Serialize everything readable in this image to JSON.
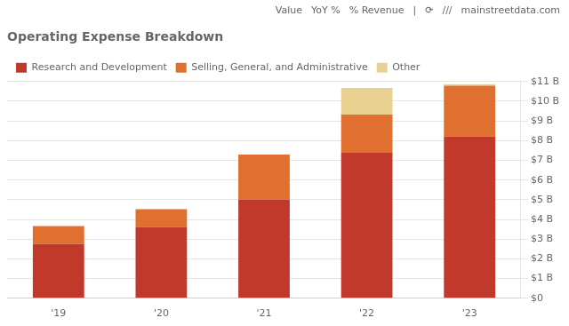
{
  "chart_data": {
    "type": "bar",
    "title": "Operating Expense Breakdown",
    "categories": [
      "'19",
      "'20",
      "'21",
      "'22",
      "'23"
    ],
    "series": [
      {
        "name": "Research and Development",
        "color": "#c0392b",
        "values": [
          2.75,
          3.62,
          5.01,
          7.38,
          8.21
        ]
      },
      {
        "name": "Selling, General, and Administrative",
        "color": "#e07030",
        "values": [
          0.92,
          0.9,
          2.28,
          1.94,
          2.58
        ]
      },
      {
        "name": "Other",
        "color": "#e8d090",
        "values": [
          0.0,
          0.0,
          0.0,
          1.35,
          0.08
        ]
      }
    ],
    "stacked": true,
    "ylim": [
      0,
      11
    ],
    "yticks": [
      {
        "value": 0,
        "label": "$0"
      },
      {
        "value": 1,
        "label": "$1 B"
      },
      {
        "value": 2,
        "label": "$2 B"
      },
      {
        "value": 3,
        "label": "$3 B"
      },
      {
        "value": 4,
        "label": "$4 B"
      },
      {
        "value": 5,
        "label": "$5 B"
      },
      {
        "value": 6,
        "label": "$6 B"
      },
      {
        "value": 7,
        "label": "$7 B"
      },
      {
        "value": 8,
        "label": "$8 B"
      },
      {
        "value": 9,
        "label": "$9 B"
      },
      {
        "value": 10,
        "label": "$10 B"
      },
      {
        "value": 11,
        "label": "$11 B"
      }
    ],
    "grid": true,
    "legend": "top",
    "annotations": [
      "Value",
      "YoY %",
      "% Revenue",
      "|",
      "⟳",
      "///",
      "mainstreetdata.com"
    ]
  }
}
